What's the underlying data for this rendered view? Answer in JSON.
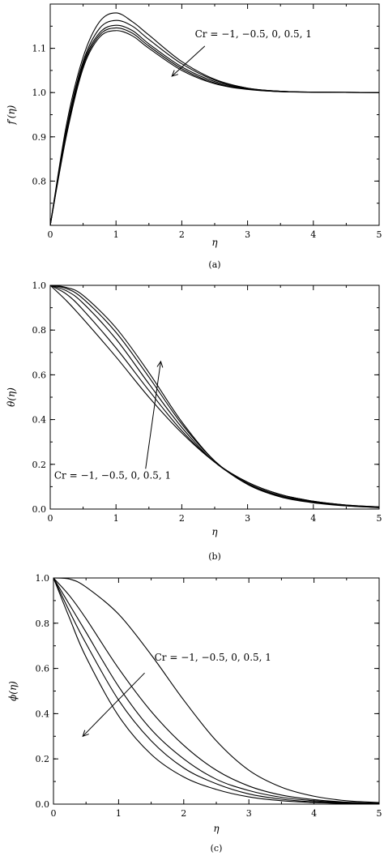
{
  "chart_data": [
    {
      "type": "line",
      "caption": "(a)",
      "xlabel": "η",
      "ylabel": "f′(η)",
      "xlim": [
        0,
        5
      ],
      "ylim": [
        0.7,
        1.2
      ],
      "xticks": [
        "0",
        "1",
        "2",
        "3",
        "4",
        "5"
      ],
      "yticks": [
        "0.8",
        "0.9",
        "1.0",
        "1.1"
      ],
      "annotation": "Cr = −1, −0.5, 0, 0.5, 1",
      "series": [
        {
          "x": [
            0,
            0.25,
            0.5,
            0.75,
            1.0,
            1.25,
            1.5,
            2.0,
            2.5,
            3.0,
            3.5,
            4.0,
            5.0
          ],
          "values": [
            0.7,
            0.93,
            1.08,
            1.16,
            1.18,
            1.16,
            1.13,
            1.07,
            1.03,
            1.01,
            1.003,
            1.001,
            1.0
          ]
        },
        {
          "x": [
            0,
            0.25,
            0.5,
            0.75,
            1.0,
            1.25,
            1.5,
            2.0,
            2.5,
            3.0,
            3.5,
            4.0,
            5.0
          ],
          "values": [
            0.7,
            0.92,
            1.07,
            1.145,
            1.163,
            1.15,
            1.12,
            1.065,
            1.028,
            1.01,
            1.003,
            1.001,
            1.0
          ]
        },
        {
          "x": [
            0,
            0.25,
            0.5,
            0.75,
            1.0,
            1.25,
            1.5,
            2.0,
            2.5,
            3.0,
            3.5,
            4.0,
            5.0
          ],
          "values": [
            0.7,
            0.915,
            1.065,
            1.135,
            1.152,
            1.14,
            1.11,
            1.058,
            1.025,
            1.009,
            1.003,
            1.001,
            1.0
          ]
        },
        {
          "x": [
            0,
            0.25,
            0.5,
            0.75,
            1.0,
            1.25,
            1.5,
            2.0,
            2.5,
            3.0,
            3.5,
            4.0,
            5.0
          ],
          "values": [
            0.7,
            0.91,
            1.06,
            1.13,
            1.146,
            1.134,
            1.105,
            1.054,
            1.022,
            1.008,
            1.002,
            1.001,
            1.0
          ]
        },
        {
          "x": [
            0,
            0.25,
            0.5,
            0.75,
            1.0,
            1.25,
            1.5,
            2.0,
            2.5,
            3.0,
            3.5,
            4.0,
            5.0
          ],
          "values": [
            0.7,
            0.905,
            1.055,
            1.125,
            1.14,
            1.128,
            1.1,
            1.05,
            1.02,
            1.007,
            1.002,
            1.001,
            1.0
          ]
        }
      ],
      "arrow": {
        "from": [
          2.35,
          1.105
        ],
        "to": [
          1.85,
          1.037
        ]
      },
      "annotation_pos": [
        2.2,
        1.125
      ]
    },
    {
      "type": "line",
      "caption": "(b)",
      "xlabel": "η",
      "ylabel": "θ(η)",
      "xlim": [
        0,
        5
      ],
      "ylim": [
        0,
        1.0
      ],
      "xticks": [
        "0",
        "1",
        "2",
        "3",
        "4",
        "5"
      ],
      "yticks": [
        "0.0",
        "0.2",
        "0.4",
        "0.6",
        "0.8",
        "1.0"
      ],
      "annotation": "Cr = −1, −0.5, 0, 0.5, 1",
      "series": [
        {
          "x": [
            0,
            0.25,
            0.5,
            1.0,
            1.5,
            2.0,
            2.5,
            3.0,
            3.5,
            4.0,
            4.5,
            5.0
          ],
          "values": [
            1.0,
            0.93,
            0.85,
            0.68,
            0.5,
            0.34,
            0.21,
            0.12,
            0.065,
            0.035,
            0.018,
            0.01
          ]
        },
        {
          "x": [
            0,
            0.25,
            0.5,
            1.0,
            1.5,
            2.0,
            2.5,
            3.0,
            3.5,
            4.0,
            4.5,
            5.0
          ],
          "values": [
            1.0,
            0.96,
            0.89,
            0.72,
            0.53,
            0.35,
            0.21,
            0.12,
            0.065,
            0.035,
            0.018,
            0.01
          ]
        },
        {
          "x": [
            0,
            0.25,
            0.5,
            1.0,
            1.5,
            2.0,
            2.5,
            3.0,
            3.5,
            4.0,
            4.5,
            5.0
          ],
          "values": [
            1.0,
            0.975,
            0.92,
            0.76,
            0.56,
            0.365,
            0.21,
            0.115,
            0.06,
            0.032,
            0.016,
            0.008
          ]
        },
        {
          "x": [
            0,
            0.25,
            0.5,
            1.0,
            1.5,
            2.0,
            2.5,
            3.0,
            3.5,
            4.0,
            4.5,
            5.0
          ],
          "values": [
            1.0,
            0.985,
            0.94,
            0.79,
            0.59,
            0.38,
            0.215,
            0.112,
            0.057,
            0.03,
            0.015,
            0.007
          ]
        },
        {
          "x": [
            0,
            0.25,
            0.5,
            1.0,
            1.5,
            2.0,
            2.5,
            3.0,
            3.5,
            4.0,
            4.5,
            5.0
          ],
          "values": [
            1.0,
            0.99,
            0.955,
            0.81,
            0.61,
            0.39,
            0.215,
            0.11,
            0.054,
            0.028,
            0.014,
            0.006
          ]
        }
      ],
      "arrow": {
        "from": [
          1.45,
          0.18
        ],
        "to": [
          1.68,
          0.66
        ]
      },
      "annotation_pos": [
        0.06,
        0.135
      ]
    },
    {
      "type": "line",
      "caption": "(c)",
      "xlabel": "η",
      "ylabel": "ϕ(η)",
      "xlim": [
        0,
        5
      ],
      "ylim": [
        0,
        1.0
      ],
      "xticks": [
        "0",
        "1",
        "2",
        "3",
        "4",
        "5"
      ],
      "yticks": [
        "0.0",
        "0.2",
        "0.4",
        "0.6",
        "0.8",
        "1.0"
      ],
      "annotation": "Cr = −1, −0.5, 0, 0.5, 1",
      "series": [
        {
          "x": [
            0,
            0.25,
            0.5,
            1.0,
            1.5,
            2.0,
            2.5,
            3.0,
            3.5,
            4.0,
            4.5,
            5.0
          ],
          "values": [
            1.0,
            0.995,
            0.96,
            0.84,
            0.66,
            0.46,
            0.28,
            0.15,
            0.075,
            0.035,
            0.015,
            0.007
          ]
        },
        {
          "x": [
            0,
            0.25,
            0.5,
            1.0,
            1.5,
            2.0,
            2.5,
            3.0,
            3.5,
            4.0,
            4.5,
            5.0
          ],
          "values": [
            1.0,
            0.92,
            0.82,
            0.6,
            0.41,
            0.26,
            0.15,
            0.08,
            0.04,
            0.02,
            0.009,
            0.004
          ]
        },
        {
          "x": [
            0,
            0.25,
            0.5,
            1.0,
            1.5,
            2.0,
            2.5,
            3.0,
            3.5,
            4.0,
            4.5,
            5.0
          ],
          "values": [
            1.0,
            0.88,
            0.76,
            0.52,
            0.33,
            0.2,
            0.11,
            0.06,
            0.03,
            0.015,
            0.007,
            0.003
          ]
        },
        {
          "x": [
            0,
            0.25,
            0.5,
            1.0,
            1.5,
            2.0,
            2.5,
            3.0,
            3.5,
            4.0,
            4.5,
            5.0
          ],
          "values": [
            1.0,
            0.85,
            0.71,
            0.46,
            0.28,
            0.16,
            0.09,
            0.045,
            0.022,
            0.01,
            0.005,
            0.002
          ]
        },
        {
          "x": [
            0,
            0.25,
            0.5,
            1.0,
            1.5,
            2.0,
            2.5,
            3.0,
            3.5,
            4.0,
            4.5,
            5.0
          ],
          "values": [
            1.0,
            0.82,
            0.65,
            0.39,
            0.22,
            0.12,
            0.065,
            0.032,
            0.015,
            0.007,
            0.003,
            0.001
          ]
        }
      ],
      "arrow": {
        "from": [
          1.4,
          0.58
        ],
        "to": [
          0.45,
          0.3
        ]
      },
      "annotation_pos": [
        1.55,
        0.635
      ]
    }
  ]
}
